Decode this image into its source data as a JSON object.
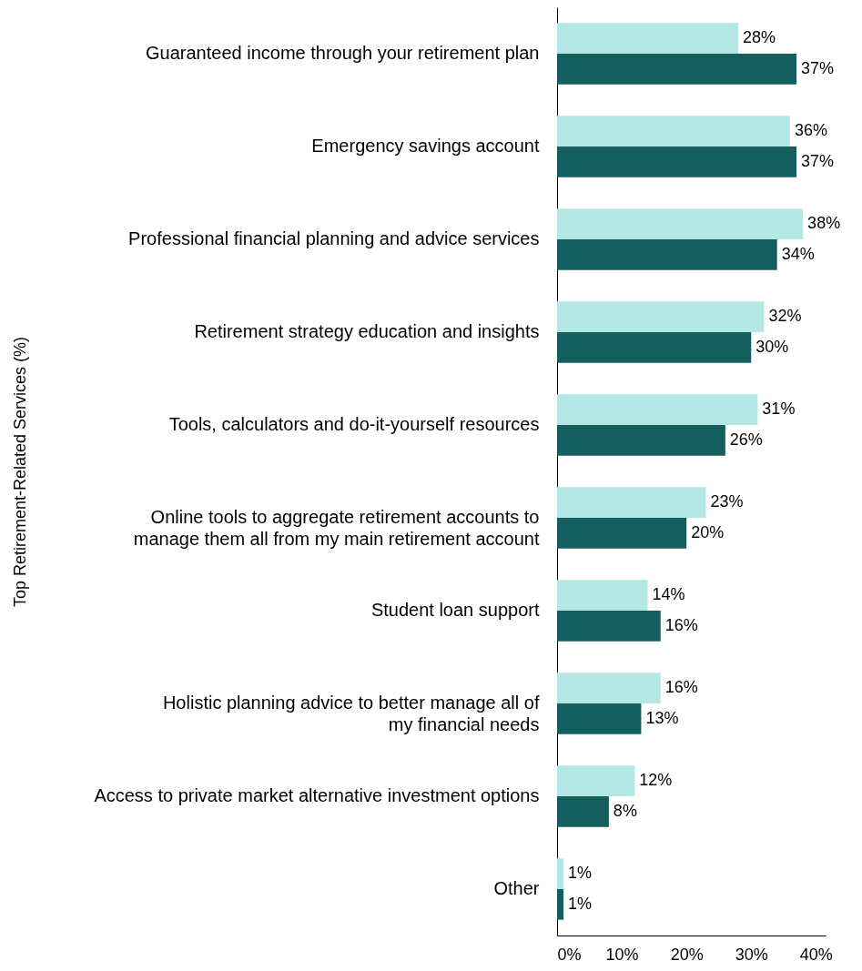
{
  "chart_data": {
    "type": "bar",
    "orientation": "horizontal",
    "ylabel": "Top Retirement-Related Services (%)",
    "categories": [
      "Guaranteed income through your retirement plan",
      "Emergency savings account",
      "Professional financial planning and advice services",
      "Retirement strategy education and insights",
      "Tools, calculators and do-it-yourself resources",
      "Online tools to aggregate retirement accounts to\nmanage them all from my main retirement account",
      "Student loan support",
      "Holistic planning advice to better manage all of\nmy financial needs",
      "Access to private market alternative investment options",
      "Other"
    ],
    "series": [
      {
        "color": "#b5e8e4",
        "values": [
          28,
          36,
          38,
          32,
          31,
          23,
          14,
          16,
          12,
          1
        ],
        "value_labels": [
          "28%",
          "36%",
          "38%",
          "32%",
          "31%",
          "23%",
          "14%",
          "16%",
          "12%",
          "1%"
        ]
      },
      {
        "color": "#155e5e",
        "values": [
          37,
          37,
          34,
          30,
          26,
          20,
          16,
          13,
          8,
          1
        ],
        "value_labels": [
          "37%",
          "37%",
          "34%",
          "30%",
          "26%",
          "20%",
          "16%",
          "13%",
          "8%",
          "1%"
        ]
      }
    ],
    "xlim": [
      0,
      41.5
    ],
    "xticks": [
      {
        "value": 0,
        "label": "0%"
      },
      {
        "value": 10,
        "label": "10%"
      },
      {
        "value": 20,
        "label": "20%"
      },
      {
        "value": 30,
        "label": "30%"
      },
      {
        "value": 40,
        "label": "40%"
      }
    ],
    "tick_labels": "xy"
  }
}
